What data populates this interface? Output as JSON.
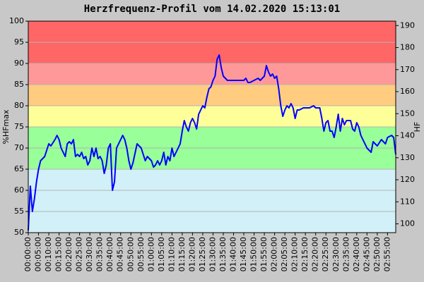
{
  "chart_data": {
    "type": "line",
    "title": "Herzfrequenz-Profil vom 14.02.2020 15:13:01",
    "y_label": "%HFmax",
    "y2_label": "HF",
    "color": "#0000ff",
    "grid": true,
    "xlim": [
      0,
      179
    ],
    "ylim": [
      50,
      100
    ],
    "y2lim": [
      96,
      192
    ],
    "yticks": [
      50,
      55,
      60,
      65,
      70,
      75,
      80,
      85,
      90,
      95,
      100
    ],
    "y2ticks": [
      100,
      110,
      120,
      130,
      140,
      150,
      160,
      170,
      180,
      190
    ],
    "xticks": [
      {
        "value": 0,
        "label": "00:00:00"
      },
      {
        "value": 5,
        "label": "00:05:00"
      },
      {
        "value": 10,
        "label": "00:10:00"
      },
      {
        "value": 15,
        "label": "00:15:00"
      },
      {
        "value": 20,
        "label": "00:20:00"
      },
      {
        "value": 25,
        "label": "00:25:00"
      },
      {
        "value": 30,
        "label": "00:30:00"
      },
      {
        "value": 35,
        "label": "00:35:00"
      },
      {
        "value": 40,
        "label": "00:40:00"
      },
      {
        "value": 45,
        "label": "00:45:00"
      },
      {
        "value": 50,
        "label": "00:50:00"
      },
      {
        "value": 55,
        "label": "00:55:00"
      },
      {
        "value": 60,
        "label": "01:00:00"
      },
      {
        "value": 65,
        "label": "01:05:00"
      },
      {
        "value": 70,
        "label": "01:10:00"
      },
      {
        "value": 75,
        "label": "01:15:00"
      },
      {
        "value": 80,
        "label": "01:20:00"
      },
      {
        "value": 85,
        "label": "01:25:00"
      },
      {
        "value": 90,
        "label": "01:30:00"
      },
      {
        "value": 95,
        "label": "01:35:00"
      },
      {
        "value": 100,
        "label": "01:40:00"
      },
      {
        "value": 105,
        "label": "01:45:00"
      },
      {
        "value": 110,
        "label": "01:50:00"
      },
      {
        "value": 115,
        "label": "01:55:00"
      },
      {
        "value": 120,
        "label": "02:00:00"
      },
      {
        "value": 125,
        "label": "02:05:00"
      },
      {
        "value": 130,
        "label": "02:10:00"
      },
      {
        "value": 135,
        "label": "02:15:00"
      },
      {
        "value": 140,
        "label": "02:20:00"
      },
      {
        "value": 145,
        "label": "02:25:00"
      },
      {
        "value": 150,
        "label": "02:30:00"
      },
      {
        "value": 155,
        "label": "02:35:00"
      },
      {
        "value": 160,
        "label": "02:40:00"
      },
      {
        "value": 165,
        "label": "02:45:00"
      },
      {
        "value": 170,
        "label": "02:50:00"
      },
      {
        "value": 175,
        "label": "02:55:00"
      }
    ],
    "zones": [
      {
        "from": 50,
        "to": 65,
        "color": "#d2f0f8"
      },
      {
        "from": 65,
        "to": 75,
        "color": "#99ff99"
      },
      {
        "from": 75,
        "to": 80,
        "color": "#ffff99"
      },
      {
        "from": 80,
        "to": 85,
        "color": "#ffcc80"
      },
      {
        "from": 85,
        "to": 90,
        "color": "#ff9999"
      },
      {
        "from": 90,
        "to": 100,
        "color": "#ff6666"
      }
    ],
    "x": [
      0,
      1,
      2,
      3,
      4,
      5,
      6,
      8,
      10,
      11,
      13,
      14,
      15,
      16,
      17,
      18,
      19,
      20,
      21,
      22,
      23,
      24,
      25,
      26,
      27,
      28,
      29,
      30,
      31,
      32,
      33,
      34,
      35,
      36,
      37,
      38,
      39,
      40,
      41,
      42,
      43,
      44,
      46,
      47,
      48,
      49,
      50,
      51,
      53,
      54,
      55,
      57,
      58,
      60,
      61,
      62,
      63,
      64,
      65,
      66,
      67,
      68,
      69,
      70,
      71,
      72,
      73,
      74,
      75,
      76,
      77,
      78,
      79,
      80,
      81,
      82,
      83,
      84,
      85,
      86,
      87,
      88,
      89,
      90,
      91,
      92,
      93,
      94,
      95,
      96,
      97,
      98,
      100,
      105,
      106,
      107,
      108,
      110,
      112,
      113,
      114,
      115,
      116,
      117,
      118,
      119,
      120,
      121,
      122,
      123,
      124,
      125,
      126,
      127,
      128,
      129,
      130,
      131,
      132,
      134,
      137,
      139,
      140,
      142,
      143,
      144,
      145,
      146,
      147,
      148,
      149,
      150,
      151,
      152,
      153,
      154,
      155,
      157,
      158,
      159,
      160,
      161,
      162,
      163,
      164,
      165,
      166,
      167,
      168,
      169,
      170,
      172,
      174,
      175,
      177,
      178,
      179
    ],
    "values": [
      50.5,
      61,
      55,
      58,
      62,
      65,
      67,
      68,
      71,
      70.5,
      72,
      73,
      72,
      70,
      69,
      68,
      71,
      71.5,
      71,
      72,
      68,
      68.5,
      68,
      69,
      67.5,
      68,
      66,
      67,
      70,
      68,
      70,
      67.5,
      68,
      67,
      64,
      66,
      70,
      71,
      60,
      62,
      70,
      71,
      73,
      72,
      70,
      67,
      65,
      66.5,
      71,
      70.5,
      70,
      67,
      68,
      67,
      65.5,
      66,
      67,
      66,
      67,
      69,
      66,
      68,
      67,
      70,
      68,
      69,
      70,
      71,
      74,
      76.5,
      75,
      74,
      76,
      77,
      76,
      74.5,
      78,
      79,
      80,
      79.5,
      82,
      84,
      84.5,
      86,
      87,
      91,
      92,
      89,
      87,
      86.5,
      86,
      86,
      86,
      86,
      86.5,
      85.5,
      85.5,
      86,
      86.5,
      86,
      86.5,
      87,
      89.5,
      88,
      87,
      87.5,
      86.5,
      87,
      84,
      80,
      77.5,
      79,
      80,
      79.5,
      80.5,
      79.5,
      77,
      79,
      79,
      79.5,
      79.5,
      80,
      79.5,
      79.5,
      77,
      74,
      76,
      76.5,
      74,
      74,
      72.5,
      75,
      78,
      74,
      77,
      75.5,
      76.5,
      76.5,
      74.5,
      74,
      76,
      75,
      73,
      72,
      71,
      70,
      69.5,
      69,
      71.5,
      71,
      70.5,
      72,
      71,
      72.5,
      73,
      72.5,
      68.5
    ]
  }
}
